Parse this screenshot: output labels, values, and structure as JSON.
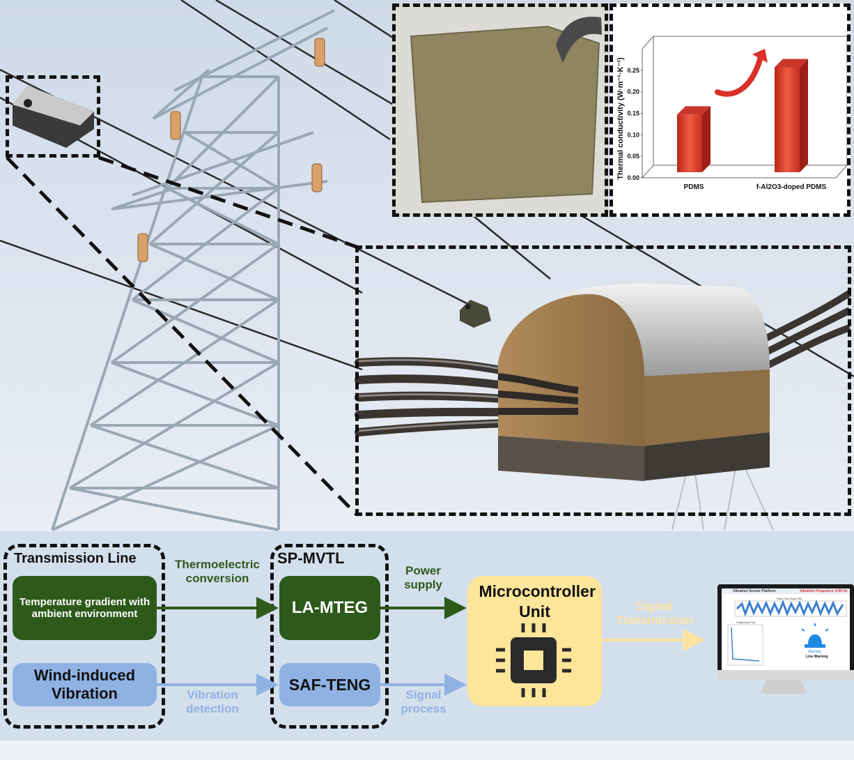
{
  "chart_data": {
    "type": "bar",
    "categories": [
      "PDMS",
      "f-Al2O3-doped PDMS"
    ],
    "values": [
      0.16,
      0.27
    ],
    "ylabel": "Thermal conductivity (W·m⁻¹·K⁻¹)",
    "yticks": [
      "0.00",
      "0.05",
      "0.10",
      "0.15",
      "0.20",
      "0.25"
    ],
    "ylim": [
      0,
      0.3
    ],
    "bar_color": "#e0402c"
  },
  "flow": {
    "group1_title": "Transmission Line",
    "group2_title": "SP-MVTL",
    "temp_box": "Temperature gradient with ambient environment",
    "wind_box": "Wind-induced Vibration",
    "lamteg": "LA-MTEG",
    "safteng": "SAF-TENG",
    "thermo_label": "Thermoelectric conversion",
    "vib_label": "Vibration detection",
    "power_label": "Power supply",
    "signal_proc_label": "Signal process",
    "mcu_label": "Microcontroller Unit",
    "signal_tx_label": "Signal Transmission"
  },
  "monitor": {
    "app_title": "Vibration Sensor Platform",
    "plot1_title": "Real-Time Data Plot",
    "plot2_title": "Frequency Plot",
    "freq_text": "Vibration Frequency: 0.00 Hz",
    "warning_label": "Warning",
    "line_warning": "Line Warning"
  },
  "colors": {
    "green": "#2d5a1b",
    "light_blue": "#8fb2e3",
    "mcu_yellow": "#fde59a",
    "signal_yellow": "#fde4a3"
  }
}
